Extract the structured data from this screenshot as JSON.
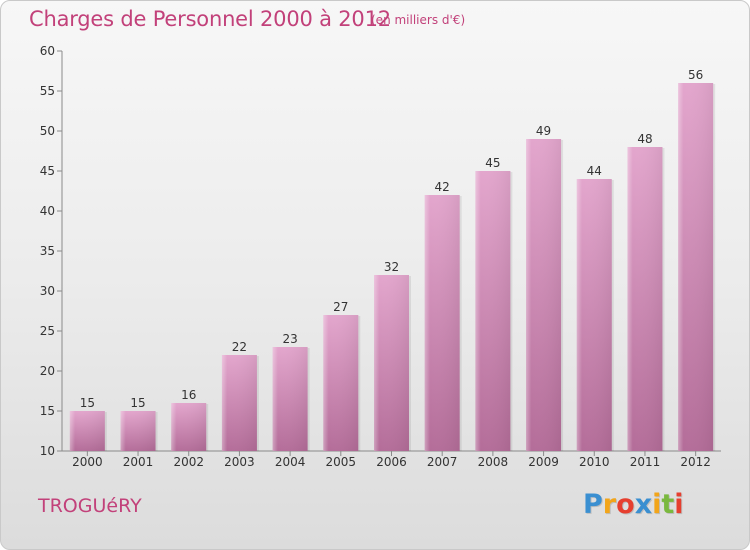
{
  "title": "Charges de Personnel 2000 à 2012",
  "subtitle": "(en milliers d'€)",
  "commune": "TROGUéRY",
  "logo": {
    "letters": [
      "P",
      "r",
      "o",
      "x",
      "i",
      "t",
      "i"
    ],
    "colors": [
      "#3a8fd1",
      "#f2a51a",
      "#e63f2f",
      "#3a8fd1",
      "#f2a51a",
      "#7ab83e",
      "#e63f2f"
    ]
  },
  "colors": {
    "bar_top": "#e3a6cd",
    "bar_bottom": "#b46d99",
    "text_accent": "#c2417a"
  },
  "chart_data": {
    "type": "bar",
    "categories": [
      "2000",
      "2001",
      "2002",
      "2003",
      "2004",
      "2005",
      "2006",
      "2007",
      "2008",
      "2009",
      "2010",
      "2011",
      "2012"
    ],
    "values": [
      15,
      15,
      16,
      22,
      23,
      27,
      32,
      42,
      45,
      49,
      44,
      48,
      56
    ],
    "ylim": [
      10,
      60
    ],
    "yticks": [
      10,
      15,
      20,
      25,
      30,
      35,
      40,
      45,
      50,
      55,
      60
    ],
    "grid": false
  }
}
